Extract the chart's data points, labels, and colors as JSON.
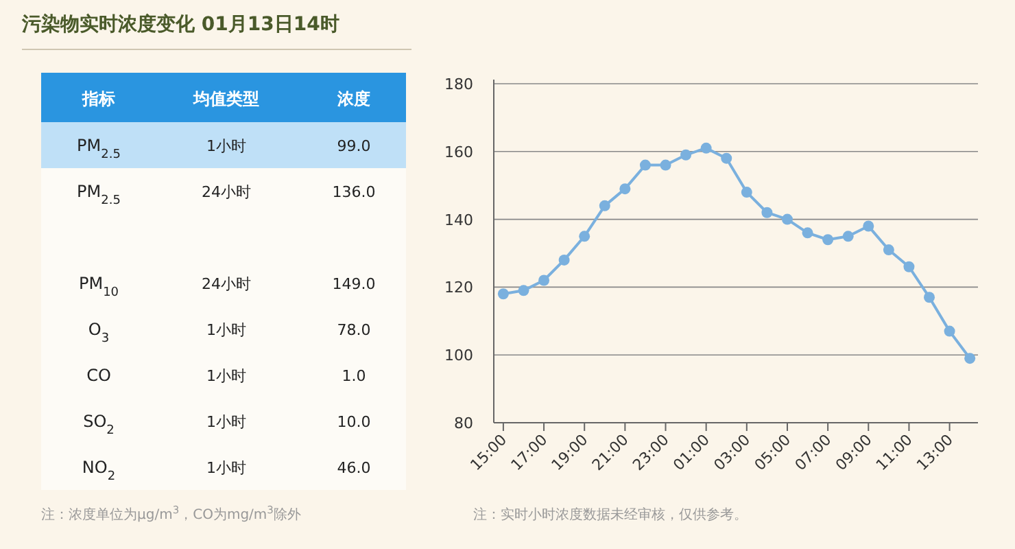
{
  "chart_data": [
    {
      "type": "other",
      "title": "污染物实时浓度变化 01月13日14时",
      "ylabel": "指标",
      "y2label": "均值类型",
      "xlabel": "浓度",
      "categories": [
        "PM$_{2.5}$",
        "PM$_{2.5}$",
        null,
        "PM$_{10}$",
        "O$_{3}$",
        "CO",
        "SO$_{2}$",
        "NO$_{2}$"
      ],
      "y2_categories": [
        "1小时",
        "24小时",
        null,
        "24小时",
        "1小时",
        "1小时",
        "1小时",
        "1小时"
      ],
      "value_labels": [
        "99.0",
        "136.0",
        null,
        "149.0",
        "78.0",
        "1.0",
        "10.0",
        "46.0"
      ],
      "annotations": [
        "注：浓度单位为μg/m$^{3}$，CO为mg/m$^{3}$除外"
      ]
    },
    {
      "type": "line",
      "color": "#7ab0de",
      "marker": "circle",
      "grid": "y",
      "categories": [
        "15:00",
        null,
        "17:00",
        null,
        "19:00",
        null,
        "21:00",
        null,
        "23:00",
        null,
        "01:00",
        null,
        "03:00",
        null,
        "05:00",
        null,
        "07:00",
        null,
        "09:00",
        null,
        "11:00",
        null,
        "13:00",
        null
      ],
      "values": [
        118,
        119,
        122,
        128,
        135,
        144,
        149,
        156,
        156,
        159,
        161,
        158,
        148,
        142,
        140,
        136,
        134,
        135,
        138,
        131,
        126,
        117,
        107,
        99
      ],
      "ylim": [
        80,
        180
      ],
      "yticks": [
        80,
        100,
        120,
        140,
        160,
        180
      ],
      "annotations": [
        "注：实时小时浓度数据未经审核，仅供参考。"
      ]
    }
  ]
}
